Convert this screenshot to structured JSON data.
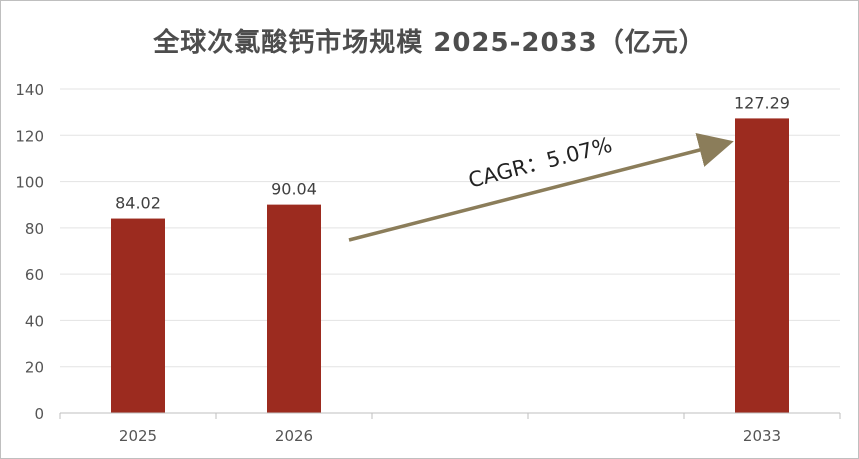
{
  "chart_data": {
    "type": "bar",
    "title": "全球次氯酸钙市场规模 2025-2033（亿元）",
    "xlabel": "",
    "ylabel": "",
    "categories": [
      "2025",
      "2026",
      "2033"
    ],
    "series": [
      {
        "values": [
          84.02,
          90.04,
          127.29
        ]
      }
    ],
    "data_labels": [
      "84.02",
      "90.04",
      "127.29"
    ],
    "ylim": [
      0,
      140
    ],
    "y_ticks": [
      0,
      20,
      40,
      60,
      80,
      100,
      120,
      140
    ],
    "y_tick_labels": [
      "0",
      "20",
      "40",
      "60",
      "80",
      "100",
      "120",
      "140"
    ],
    "grid": true,
    "legend": "none",
    "bar_color": "#9c2b1f",
    "annotation": {
      "text": "CAGR：5.07%",
      "from": "2026",
      "to": "2033",
      "color": "#8b7d5a"
    }
  }
}
